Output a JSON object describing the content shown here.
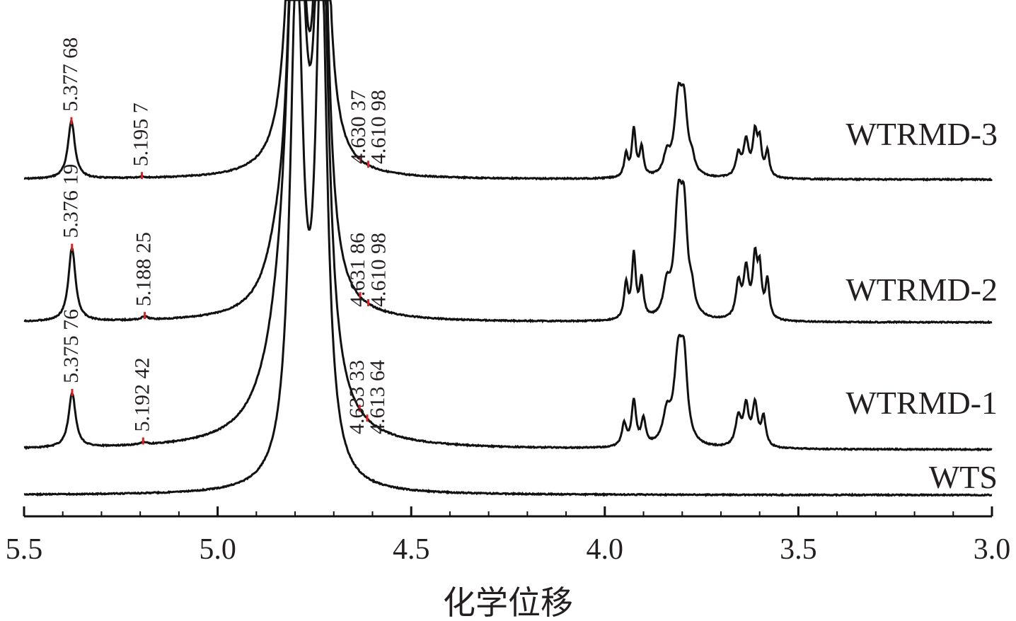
{
  "chart_data": {
    "type": "line",
    "xlabel": "化学位移",
    "xlim": [
      5.5,
      3.0
    ],
    "xaxis_reversed": true,
    "xticks": [
      "5.5",
      "5.0",
      "4.5",
      "4.0",
      "3.5",
      "3.0"
    ],
    "grid": false,
    "colors": {
      "trace": "#111111",
      "marker": "#e02020",
      "text": "#231f20"
    },
    "series": [
      {
        "name": "WTRMD-3",
        "peaks": [
          {
            "ppm": 5.37768,
            "height": 0.9,
            "width": 0.011
          },
          {
            "ppm": 5.1957,
            "height": 0.02,
            "width": 0.01
          },
          {
            "ppm": 4.796,
            "height": 8.0,
            "width": 0.02
          },
          {
            "ppm": 4.732,
            "height": 8.0,
            "width": 0.016
          },
          {
            "ppm": 3.945,
            "height": 0.35,
            "width": 0.006
          },
          {
            "ppm": 3.925,
            "height": 0.75,
            "width": 0.006
          },
          {
            "ppm": 3.905,
            "height": 0.45,
            "width": 0.006
          },
          {
            "ppm": 3.84,
            "height": 0.3,
            "width": 0.01
          },
          {
            "ppm": 3.81,
            "height": 1.15,
            "width": 0.012
          },
          {
            "ppm": 3.795,
            "height": 0.95,
            "width": 0.01
          },
          {
            "ppm": 3.775,
            "height": 0.2,
            "width": 0.008
          },
          {
            "ppm": 3.655,
            "height": 0.35,
            "width": 0.008
          },
          {
            "ppm": 3.635,
            "height": 0.55,
            "width": 0.008
          },
          {
            "ppm": 3.612,
            "height": 0.65,
            "width": 0.007
          },
          {
            "ppm": 3.6,
            "height": 0.5,
            "width": 0.006
          },
          {
            "ppm": 3.58,
            "height": 0.4,
            "width": 0.006
          }
        ],
        "labels": [
          "5.377 68",
          "5.195 7",
          "4.630 37",
          "4.610 98"
        ]
      },
      {
        "name": "WTRMD-2",
        "peaks": [
          {
            "ppm": 5.37619,
            "height": 1.15,
            "width": 0.011
          },
          {
            "ppm": 5.18825,
            "height": 0.05,
            "width": 0.01
          },
          {
            "ppm": 4.845,
            "height": 0.5,
            "width": 0.04
          },
          {
            "ppm": 4.796,
            "height": 8.0,
            "width": 0.022
          },
          {
            "ppm": 4.732,
            "height": 8.0,
            "width": 0.018
          },
          {
            "ppm": 3.945,
            "height": 0.55,
            "width": 0.006
          },
          {
            "ppm": 3.925,
            "height": 1.0,
            "width": 0.006
          },
          {
            "ppm": 3.905,
            "height": 0.6,
            "width": 0.006
          },
          {
            "ppm": 3.84,
            "height": 0.45,
            "width": 0.01
          },
          {
            "ppm": 3.81,
            "height": 1.7,
            "width": 0.012
          },
          {
            "ppm": 3.795,
            "height": 1.4,
            "width": 0.01
          },
          {
            "ppm": 3.775,
            "height": 0.3,
            "width": 0.008
          },
          {
            "ppm": 3.655,
            "height": 0.55,
            "width": 0.008
          },
          {
            "ppm": 3.635,
            "height": 0.75,
            "width": 0.008
          },
          {
            "ppm": 3.612,
            "height": 0.9,
            "width": 0.007
          },
          {
            "ppm": 3.6,
            "height": 0.7,
            "width": 0.006
          },
          {
            "ppm": 3.58,
            "height": 0.6,
            "width": 0.006
          }
        ],
        "labels": [
          "5.376 19",
          "5.188 25",
          "4.631 86",
          "4.610 98"
        ]
      },
      {
        "name": "WTRMD-1",
        "peaks": [
          {
            "ppm": 5.37576,
            "height": 0.85,
            "width": 0.011
          },
          {
            "ppm": 5.19242,
            "height": 0.04,
            "width": 0.01
          },
          {
            "ppm": 4.82,
            "height": 1.5,
            "width": 0.06
          },
          {
            "ppm": 4.796,
            "height": 8.0,
            "width": 0.025
          },
          {
            "ppm": 4.732,
            "height": 8.0,
            "width": 0.02
          },
          {
            "ppm": 3.95,
            "height": 0.35,
            "width": 0.007
          },
          {
            "ppm": 3.925,
            "height": 0.7,
            "width": 0.007
          },
          {
            "ppm": 3.9,
            "height": 0.4,
            "width": 0.007
          },
          {
            "ppm": 3.84,
            "height": 0.45,
            "width": 0.012
          },
          {
            "ppm": 3.81,
            "height": 1.35,
            "width": 0.013
          },
          {
            "ppm": 3.795,
            "height": 1.1,
            "width": 0.01
          },
          {
            "ppm": 3.655,
            "height": 0.45,
            "width": 0.009
          },
          {
            "ppm": 3.635,
            "height": 0.6,
            "width": 0.008
          },
          {
            "ppm": 3.612,
            "height": 0.65,
            "width": 0.008
          },
          {
            "ppm": 3.59,
            "height": 0.45,
            "width": 0.007
          }
        ],
        "labels": [
          "5.375 76",
          "5.192 42",
          "4.633 33",
          "4.613 64"
        ]
      },
      {
        "name": "WTS",
        "peaks": [
          {
            "ppm": 4.796,
            "height": 8.0,
            "width": 0.02
          },
          {
            "ppm": 4.732,
            "height": 8.0,
            "width": 0.018
          }
        ],
        "labels": []
      }
    ]
  }
}
